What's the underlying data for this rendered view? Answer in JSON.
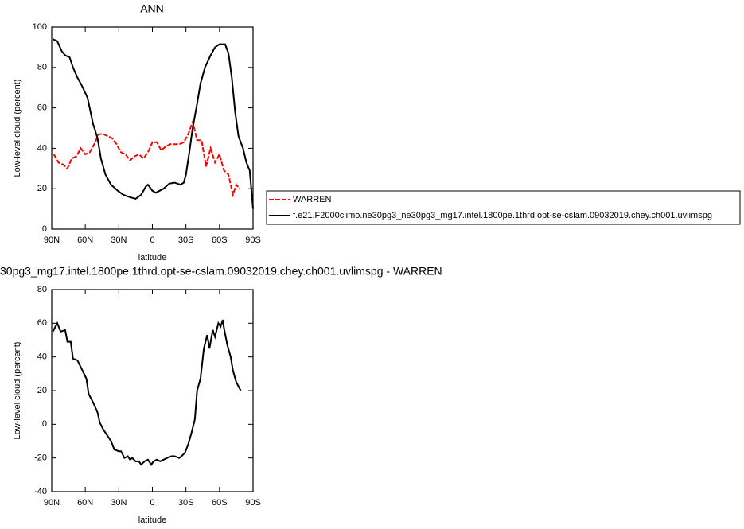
{
  "chart_data": [
    {
      "type": "line",
      "title": "ANN",
      "xlabel": "latitude",
      "ylabel": "Low-level cloud (percent)",
      "xlim": [
        90,
        -90
      ],
      "ylim": [
        0,
        100
      ],
      "xticks": [
        {
          "value": 90,
          "label": "90N"
        },
        {
          "value": 60,
          "label": "60N"
        },
        {
          "value": 30,
          "label": "30N"
        },
        0,
        {
          "value": -30,
          "label": "30S"
        },
        {
          "value": -60,
          "label": "60S"
        },
        {
          "value": -90,
          "label": "90S"
        }
      ],
      "yticks": [
        0,
        20,
        40,
        60,
        80,
        100
      ],
      "legend": "right",
      "series": [
        {
          "name": "WARREN",
          "color": "#ff0000",
          "dash": true,
          "x": [
            88,
            84,
            80,
            76,
            72,
            68,
            64,
            60,
            56,
            52,
            48,
            44,
            40,
            36,
            32,
            28,
            24,
            20,
            16,
            12,
            8,
            4,
            0,
            -4,
            -8,
            -12,
            -16,
            -20,
            -24,
            -28,
            -32,
            -36,
            -40,
            -44,
            -48,
            -52,
            -56,
            -60,
            -64,
            -68,
            -72,
            -75,
            -78
          ],
          "values": [
            37,
            33,
            32,
            30,
            35,
            36,
            40,
            37,
            38,
            42,
            47,
            47,
            46,
            45,
            42,
            38,
            37,
            34,
            36,
            37,
            35,
            38,
            43,
            43,
            39,
            41,
            42,
            42,
            42,
            43,
            47,
            53,
            44,
            44,
            31,
            40,
            33,
            37,
            29,
            27,
            17,
            22,
            20
          ]
        },
        {
          "name": "f.e21.F2000climo.ne30pg3_ne30pg3_mg17.intel.1800pe.1thrd.opt-se-cslam.09032019.chey.ch001.uvlimspg",
          "color": "#000000",
          "dash": false,
          "x": [
            89,
            85,
            81,
            78,
            74,
            71,
            67,
            63,
            58,
            53,
            49,
            46,
            42,
            37,
            31,
            26,
            21,
            15,
            10,
            6,
            4,
            0,
            -3,
            -10,
            -15,
            -20,
            -25,
            -28,
            -30,
            -33,
            -36,
            -40,
            -43,
            -47,
            -52,
            -56,
            -60,
            -65,
            -68,
            -71,
            -74,
            -77,
            -81,
            -84,
            -87,
            -90
          ],
          "values": [
            94,
            93,
            88,
            86,
            85,
            80,
            75,
            71,
            65,
            52,
            45,
            35,
            27,
            22,
            19,
            17,
            16,
            15,
            17,
            21,
            22,
            19,
            18,
            20,
            22.5,
            23,
            22,
            23,
            27,
            38,
            50,
            62,
            72,
            80,
            86,
            90,
            91.5,
            91.5,
            87,
            75,
            58,
            46,
            40,
            33,
            29,
            10
          ]
        }
      ]
    },
    {
      "type": "line",
      "title": "30pg3_mg17.intel.1800pe.1thrd.opt-se-cslam.09032019.chey.ch001.uvlimspg - WARREN",
      "xlabel": "latitude",
      "ylabel": "Low-level cloud (percent)",
      "xlim": [
        90,
        -90
      ],
      "ylim": [
        -40,
        80
      ],
      "xticks": [
        {
          "value": 90,
          "label": "90N"
        },
        {
          "value": 60,
          "label": "60N"
        },
        {
          "value": 30,
          "label": "30N"
        },
        0,
        {
          "value": -30,
          "label": "30S"
        },
        {
          "value": -60,
          "label": "60S"
        },
        {
          "value": -90,
          "label": "90S"
        }
      ],
      "yticks": [
        -40,
        -20,
        0,
        20,
        40,
        60,
        80
      ],
      "series": [
        {
          "color": "#000000",
          "dash": false,
          "x": [
            89,
            85,
            82,
            78,
            76,
            73,
            71,
            67,
            64,
            59,
            57,
            53,
            49,
            47,
            44,
            40,
            37,
            34,
            30,
            28,
            25,
            22,
            20,
            18,
            15,
            12,
            10,
            7,
            4,
            1,
            -1,
            -4,
            -7,
            -10,
            -13,
            -17,
            -20,
            -24,
            -26,
            -29,
            -32,
            -35,
            -38,
            -40,
            -43,
            -46,
            -49,
            -51,
            -54,
            -56,
            -59,
            -61,
            -63,
            -64,
            -67,
            -70,
            -72,
            -75,
            -79
          ],
          "values": [
            55,
            60,
            55,
            56,
            49,
            49,
            39,
            38,
            34,
            27,
            18,
            13,
            7,
            1,
            -3,
            -7,
            -10,
            -15,
            -16,
            -16,
            -20,
            -19,
            -21,
            -20,
            -22,
            -22,
            -24,
            -22,
            -21,
            -24,
            -22,
            -21,
            -22,
            -21,
            -20,
            -19,
            -19,
            -20,
            -19,
            -17,
            -12,
            -5,
            3,
            20,
            27,
            45,
            53,
            45,
            56,
            52,
            60,
            58,
            62,
            57,
            47,
            40,
            32,
            25,
            20
          ]
        }
      ]
    }
  ]
}
